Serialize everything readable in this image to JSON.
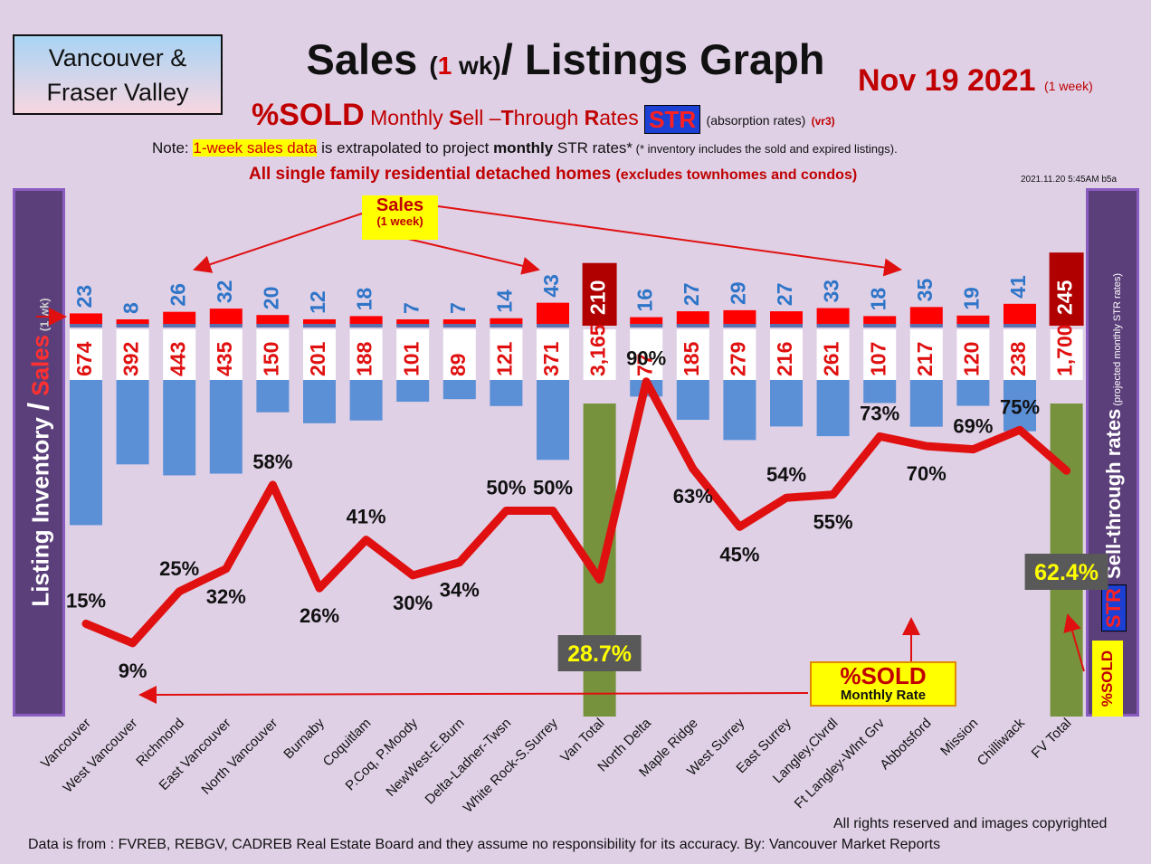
{
  "header": {
    "region_line1": "Vancouver &",
    "region_line2": "Fraser Valley",
    "title_part1": "Sales",
    "title_paren_open": "(",
    "title_number": "1",
    "title_wk": " wk)",
    "title_part2": "/ Listings Graph",
    "date": "Nov 19  2021",
    "date_note": "(1 week)",
    "subtitle_sold": "%SOLD",
    "subtitle_s": "S",
    "subtitle_ell": "ell –",
    "subtitle_t": "T",
    "subtitle_hrough": "hrough ",
    "subtitle_r": "R",
    "subtitle_ates": "ates",
    "subtitle_monthly": " Monthly ",
    "str_label": "STR",
    "subtitle_absorption": "(absorption rates)",
    "version": "(vr3)",
    "note_prefix": "Note: ",
    "note_highlight": "1-week sales data",
    "note_mid": " is extrapolated to project ",
    "note_bold": "monthly",
    "note_str": " STR rates*",
    "note_small": " (* inventory includes the sold and expired listings).",
    "scope_main": "All single family residential detached homes ",
    "scope_sub": "(excludes townhomes and condos)",
    "stamp": "2021.11.20 5:45AM b5a"
  },
  "side_labels": {
    "left_inventory": "Listing Inventory ",
    "left_slash": "/",
    "left_sales": " Sales",
    "left_wk": " (1 wk)",
    "right_text": "Sell-through rates",
    "right_note": " (projected monthly STR rates)",
    "right_str": "STR",
    "right_sold": "%SOLD"
  },
  "callouts": {
    "sales_line1": "Sales",
    "sales_line2": "(1 week)",
    "sold_line1": "%SOLD",
    "sold_line2": "Monthly Rate"
  },
  "footer": {
    "rights": "All rights reserved and  images copyrighted",
    "source": "Data is from : FVREB, REBGV, CADREB Real Estate Board and they assume no responsibility for its accuracy. By: Vancouver Market Reports"
  },
  "colors": {
    "sales_bar": "#ff0000",
    "total_sales_bar": "#b00000",
    "inventory_bar": "#5b8fd6",
    "total_inventory_bar": "#76923c",
    "str_line": "#e01010",
    "panel": "#5b3f7a"
  },
  "chart_data": {
    "type": "bar",
    "categories": [
      "Vancouver",
      "West Vancouver",
      "Richmond",
      "East Vancouver",
      "North Vancouver",
      "Burnaby",
      "Coquitlam",
      "P.Coq, P.Moody",
      "NewWest-E.Burn",
      "Delta-Ladner-Twsn",
      "White Rock-S.Surrey",
      "Van Total",
      "North Delta",
      "Maple Ridge",
      "West Surrey",
      "East Surrey",
      "Langley,Clvrdl",
      "Ft Langley-Wlnt Grv",
      "Abbotsford",
      "Mission",
      "Chilliwack",
      "FV Total"
    ],
    "series": [
      {
        "name": "Sales",
        "values": [
          23,
          8,
          26,
          32,
          20,
          12,
          18,
          7,
          7,
          14,
          43,
          210,
          16,
          27,
          29,
          27,
          33,
          18,
          35,
          19,
          41,
          245
        ]
      },
      {
        "name": "Listing Inventory",
        "values": [
          674,
          392,
          443,
          435,
          150,
          201,
          188,
          101,
          89,
          121,
          371,
          3165,
          77,
          185,
          279,
          216,
          261,
          107,
          217,
          120,
          238,
          1700
        ]
      },
      {
        "name": "Sell-through rates",
        "values": [
          15,
          9,
          25,
          32,
          58,
          26,
          41,
          30,
          34,
          50,
          50,
          28.7,
          90,
          63,
          45,
          54,
          55,
          73,
          70,
          69,
          75,
          62.4
        ]
      }
    ],
    "sales_labels": [
      "23",
      "8",
      "26",
      "32",
      "20",
      "12",
      "18",
      "7",
      "7",
      "14",
      "43",
      "210",
      "16",
      "27",
      "29",
      "27",
      "33",
      "18",
      "35",
      "19",
      "41",
      "245"
    ],
    "inventory_labels": [
      "674",
      "392",
      "443",
      "435",
      "150",
      "201",
      "188",
      "101",
      "89",
      "121",
      "371",
      "3,165",
      "77",
      "185",
      "279",
      "216",
      "261",
      "107",
      "217",
      "120",
      "238",
      "1,700"
    ],
    "str_labels": [
      "15%",
      "9%",
      "25%",
      "32%",
      "58%",
      "26%",
      "41%",
      "30%",
      "34%",
      "50%",
      "50%",
      "28.7%",
      "90%",
      "63%",
      "45%",
      "54%",
      "55%",
      "73%",
      "70%",
      "69%",
      "75%",
      "62.4%"
    ],
    "total_categories": [
      "Van Total",
      "FV Total"
    ]
  }
}
